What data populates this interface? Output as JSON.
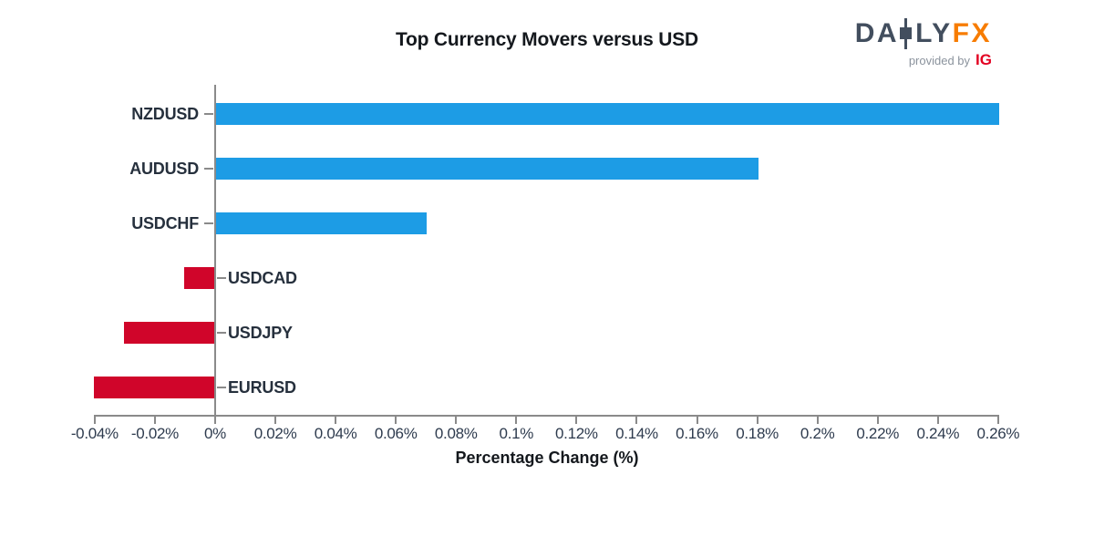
{
  "header": {
    "logo": {
      "brand_left": "DA",
      "brand_right": "LY",
      "brand_fx": "FX",
      "provided_by": "provided by",
      "ig": "IG",
      "brand_color": "#424e5e",
      "fx_color": "#f77c00",
      "provided_color": "#8b939d",
      "ig_color": "#e30021"
    }
  },
  "chart_data": {
    "type": "bar",
    "orientation": "horizontal",
    "title": "Top Currency Movers versus USD",
    "xlabel": "Percentage Change (%)",
    "categories": [
      "NZDUSD",
      "AUDUSD",
      "USDCHF",
      "USDCAD",
      "USDJPY",
      "EURUSD"
    ],
    "values": [
      0.26,
      0.18,
      0.07,
      -0.01,
      -0.03,
      -0.04
    ],
    "xlim": [
      -0.04,
      0.26
    ],
    "xticks": [
      -0.04,
      -0.02,
      0,
      0.02,
      0.04,
      0.06,
      0.08,
      0.1,
      0.12,
      0.14,
      0.16,
      0.18,
      0.2,
      0.22,
      0.24,
      0.26
    ],
    "xtick_labels": [
      "-0.04%",
      "-0.02%",
      "0%",
      "0.02%",
      "0.04%",
      "0.06%",
      "0.08%",
      "0.1%",
      "0.12%",
      "0.14%",
      "0.16%",
      "0.18%",
      "0.2%",
      "0.22%",
      "0.24%",
      "0.26%"
    ],
    "positive_color": "#1d9ce5",
    "negative_color": "#d0052a",
    "axis_color": "#8a8a8a",
    "tick_label_color": "#2e3b4e",
    "bar_label_color": "#26303d",
    "grid": false
  }
}
